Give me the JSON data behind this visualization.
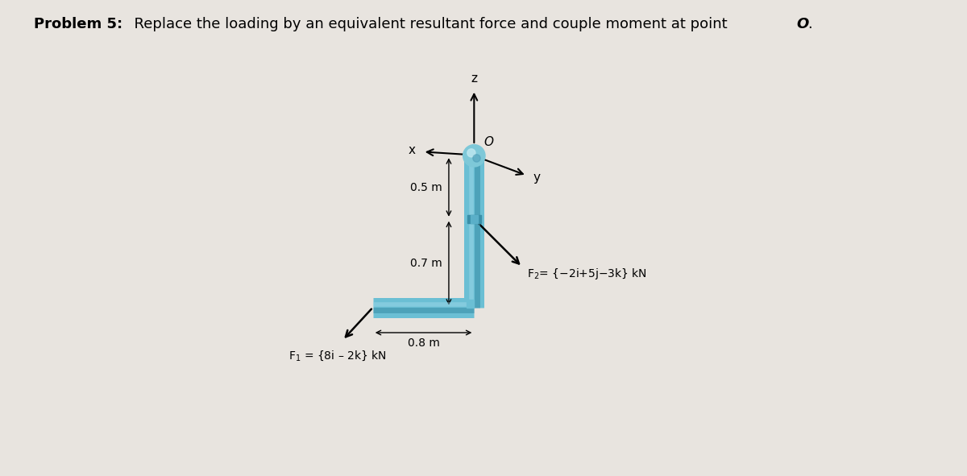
{
  "bg_color": "#e8e4df",
  "beam_color": "#6bbfd4",
  "beam_dark": "#3a8fa8",
  "beam_light": "#9dd8e8",
  "title_bold": "Problem 5:",
  "title_normal": "  Replace the loading by an equivalent resultant force and couple moment at point ",
  "title_italic": "O",
  "title_end": ".",
  "F1_label": "F$_1$ = {8i – 2k} kN",
  "F2_label": "F$_2$= {−2i+5j−3k} kN",
  "label_z": "z",
  "label_O": "O",
  "label_x": "x",
  "label_y": "y",
  "label_05": "0.5 m",
  "label_07": "0.7 m",
  "label_08": "0.8 m",
  "ox": 1.58,
  "oz": 1.52,
  "dim_05": 0.5,
  "dim_07": 0.7,
  "dim_08": 0.8
}
